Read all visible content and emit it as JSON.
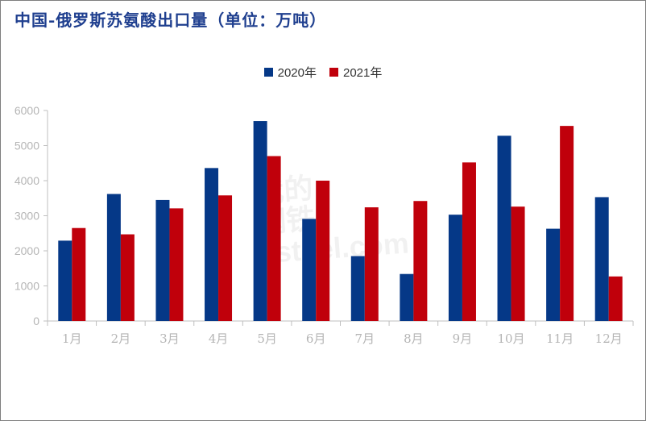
{
  "title": "中国-俄罗斯苏氨酸出口量（单位：万吨）",
  "watermark": [
    "我的",
    "钢铁",
    "ysteel.com"
  ],
  "colors": {
    "series_2020": "#053887",
    "series_2021": "#c0000b",
    "axis": "#bfbfbf",
    "tick": "#b5b5b5",
    "title": "#1f3f8f"
  },
  "chart_data": {
    "type": "bar",
    "title": "中国-俄罗斯苏氨酸出口量（单位：万吨）",
    "categories": [
      "1月",
      "2月",
      "3月",
      "4月",
      "5月",
      "6月",
      "7月",
      "8月",
      "9月",
      "10月",
      "11月",
      "12月"
    ],
    "series": [
      {
        "name": "2020年",
        "values": [
          2290,
          3620,
          3450,
          4360,
          5700,
          2910,
          1850,
          1340,
          3030,
          5280,
          2630,
          3530
        ]
      },
      {
        "name": "2021年",
        "values": [
          2650,
          2470,
          3210,
          3580,
          4700,
          4000,
          3240,
          3420,
          4520,
          3260,
          5560,
          1270
        ]
      }
    ],
    "xlabel": "",
    "ylabel": "",
    "ylim": [
      0,
      6000
    ],
    "yticks": [
      0,
      1000,
      2000,
      3000,
      4000,
      5000,
      6000
    ],
    "grid": false,
    "legend_position": "top-center"
  }
}
